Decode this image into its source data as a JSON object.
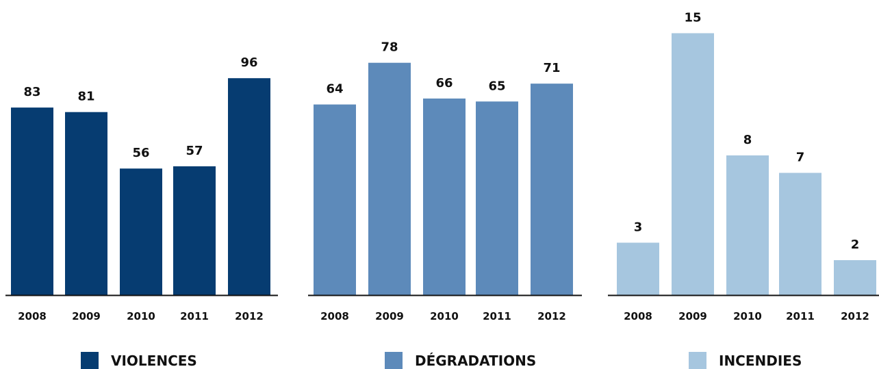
{
  "chart_data": [
    {
      "type": "bar",
      "categories": [
        "2008",
        "2009",
        "2010",
        "2011",
        "2012"
      ],
      "values": [
        83,
        81,
        56,
        57,
        96
      ],
      "legend": "VIOLENCES",
      "color": "#063c71",
      "ylim": [
        0,
        100
      ]
    },
    {
      "type": "bar",
      "categories": [
        "2008",
        "2009",
        "2010",
        "2011",
        "2012"
      ],
      "values": [
        64,
        78,
        66,
        65,
        71
      ],
      "legend": "DÉGRADATIONS",
      "color": "#5d8aba",
      "ylim": [
        0,
        100
      ]
    },
    {
      "type": "bar",
      "categories": [
        "2008",
        "2009",
        "2010",
        "2011",
        "2012"
      ],
      "values": [
        3,
        15,
        8,
        7,
        2
      ],
      "legend": "INCENDIES",
      "color": "#a6c6df",
      "ylim": [
        0,
        16
      ]
    }
  ]
}
